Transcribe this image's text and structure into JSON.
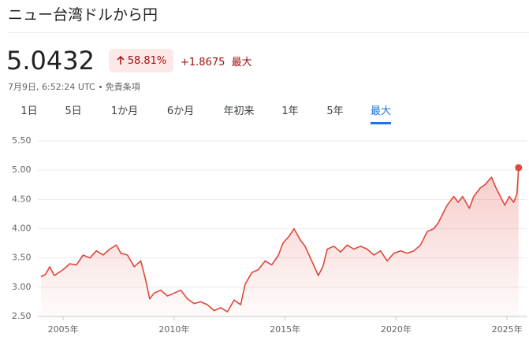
{
  "header": {
    "title": "ニュー台湾ドルから円",
    "price": "5.0432",
    "change_percent": "58.81%",
    "change_abs": "+1.8675",
    "period": "最大",
    "timestamp": "7月9日, 6:52:24 UTC",
    "disclaimer": "免責条項"
  },
  "tabs": {
    "items": [
      "1日",
      "5日",
      "1か月",
      "6か月",
      "年初来",
      "1年",
      "5年",
      "最大"
    ],
    "selected": 7
  },
  "chart_data": {
    "type": "line",
    "color": "#e0463b",
    "grid": true,
    "x": [
      2004.0,
      2004.2,
      2004.4,
      2004.6,
      2004.8,
      2005.0,
      2005.3,
      2005.6,
      2005.9,
      2006.2,
      2006.5,
      2006.8,
      2007.1,
      2007.4,
      2007.6,
      2007.9,
      2008.2,
      2008.5,
      2008.7,
      2008.9,
      2009.1,
      2009.4,
      2009.7,
      2010.0,
      2010.3,
      2010.6,
      2010.9,
      2011.2,
      2011.5,
      2011.8,
      2012.1,
      2012.4,
      2012.7,
      2013.0,
      2013.2,
      2013.5,
      2013.8,
      2014.1,
      2014.4,
      2014.7,
      2014.9,
      2015.2,
      2015.4,
      2015.7,
      2015.9,
      2016.2,
      2016.5,
      2016.7,
      2016.9,
      2017.2,
      2017.5,
      2017.8,
      2018.1,
      2018.4,
      2018.7,
      2019.0,
      2019.3,
      2019.6,
      2019.9,
      2020.2,
      2020.5,
      2020.8,
      2021.1,
      2021.4,
      2021.7,
      2021.9,
      2022.1,
      2022.3,
      2022.6,
      2022.8,
      2023.0,
      2023.3,
      2023.5,
      2023.8,
      2024.0,
      2024.3,
      2024.5,
      2024.7,
      2024.9,
      2025.1,
      2025.3,
      2025.45,
      2025.52
    ],
    "values": [
      3.18,
      3.22,
      3.35,
      3.2,
      3.25,
      3.3,
      3.4,
      3.38,
      3.55,
      3.5,
      3.62,
      3.55,
      3.65,
      3.72,
      3.58,
      3.55,
      3.35,
      3.45,
      3.15,
      2.8,
      2.9,
      2.95,
      2.85,
      2.9,
      2.95,
      2.8,
      2.72,
      2.75,
      2.7,
      2.6,
      2.65,
      2.58,
      2.78,
      2.7,
      3.05,
      3.25,
      3.3,
      3.45,
      3.38,
      3.55,
      3.75,
      3.88,
      4.0,
      3.8,
      3.7,
      3.45,
      3.2,
      3.35,
      3.65,
      3.7,
      3.6,
      3.72,
      3.65,
      3.7,
      3.65,
      3.55,
      3.62,
      3.45,
      3.58,
      3.62,
      3.58,
      3.62,
      3.72,
      3.95,
      4.0,
      4.1,
      4.25,
      4.4,
      4.55,
      4.45,
      4.55,
      4.35,
      4.55,
      4.7,
      4.75,
      4.88,
      4.7,
      4.55,
      4.4,
      4.55,
      4.45,
      4.6,
      5.0432
    ],
    "xlim": [
      2003.86,
      2025.67
    ],
    "ylim": [
      2.5,
      5.5
    ],
    "xticks": [
      {
        "value": 2005,
        "label": "2005年"
      },
      {
        "value": 2010,
        "label": "2010年"
      },
      {
        "value": 2015,
        "label": "2015年"
      },
      {
        "value": 2020,
        "label": "2020年"
      },
      {
        "value": 2025,
        "label": "2025年"
      }
    ],
    "yticks": [
      {
        "value": 2.5,
        "label": "2.50"
      },
      {
        "value": 3,
        "label": "3.00"
      },
      {
        "value": 3.5,
        "label": "3.50"
      },
      {
        "value": 4,
        "label": "4.00"
      },
      {
        "value": 4.5,
        "label": "4.50"
      },
      {
        "value": 5,
        "label": "5.00"
      },
      {
        "value": 5.5,
        "label": "5.50"
      }
    ]
  }
}
